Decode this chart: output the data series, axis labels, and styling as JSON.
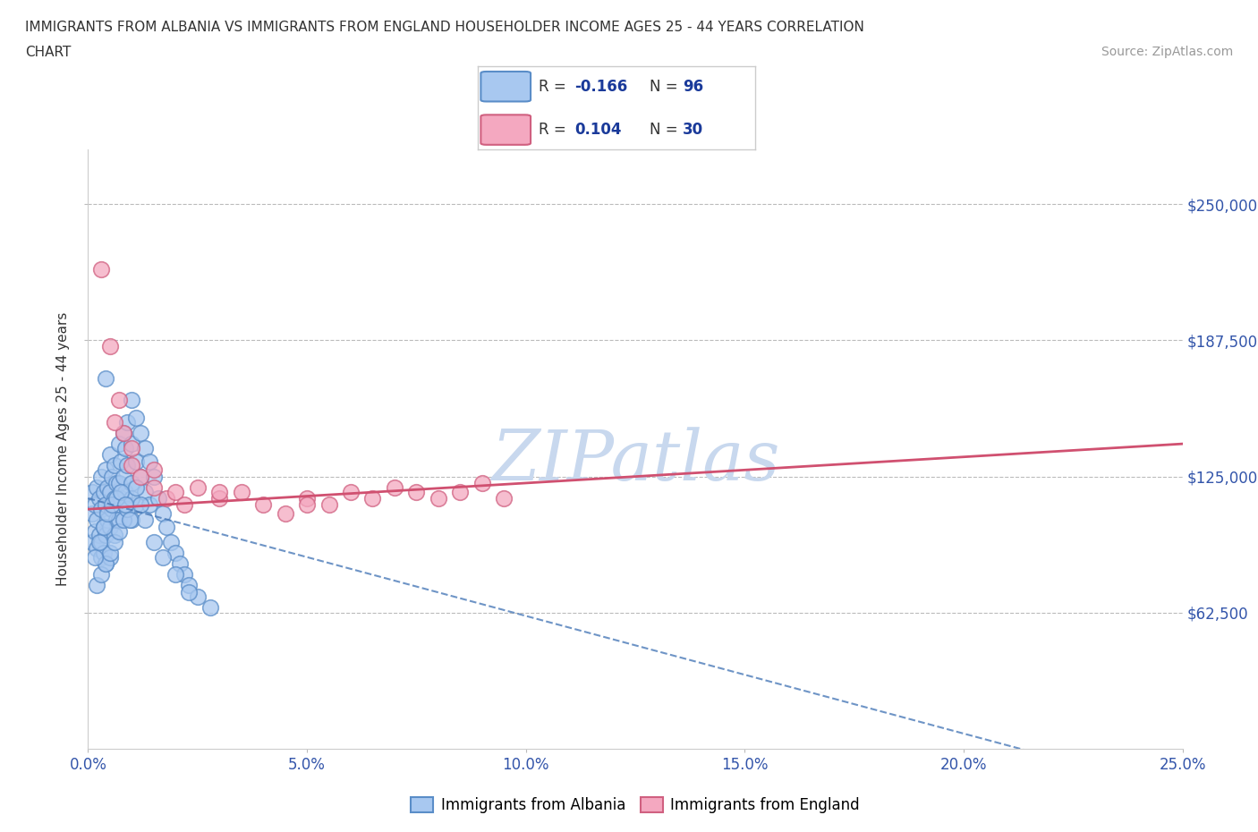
{
  "title_line1": "IMMIGRANTS FROM ALBANIA VS IMMIGRANTS FROM ENGLAND HOUSEHOLDER INCOME AGES 25 - 44 YEARS CORRELATION",
  "title_line2": "CHART",
  "source_text": "Source: ZipAtlas.com",
  "ylabel": "Householder Income Ages 25 - 44 years",
  "xlabel_ticks": [
    "0.0%",
    "5.0%",
    "10.0%",
    "15.0%",
    "20.0%",
    "25.0%"
  ],
  "xlabel_vals": [
    0.0,
    5.0,
    10.0,
    15.0,
    20.0,
    25.0
  ],
  "ytick_labels": [
    "$62,500",
    "$125,000",
    "$187,500",
    "$250,000"
  ],
  "ytick_vals": [
    62500,
    125000,
    187500,
    250000
  ],
  "xlim": [
    0.0,
    25.0
  ],
  "ylim": [
    0,
    275000
  ],
  "albania_R": -0.166,
  "albania_N": 96,
  "england_R": 0.104,
  "england_N": 30,
  "albania_color": "#a8c8f0",
  "albania_edge": "#5a8dc8",
  "england_color": "#f4a8c0",
  "england_edge": "#d06080",
  "albania_trend_color": "#4a7ab8",
  "england_trend_color": "#d05070",
  "watermark_color": "#c8d8ee",
  "legend_R_color": "#1a3a9a",
  "legend_N_color": "#1a3a9a",
  "albania_scatter_x": [
    0.1,
    0.1,
    0.1,
    0.15,
    0.15,
    0.2,
    0.2,
    0.2,
    0.25,
    0.25,
    0.3,
    0.3,
    0.3,
    0.3,
    0.35,
    0.35,
    0.35,
    0.4,
    0.4,
    0.4,
    0.4,
    0.45,
    0.45,
    0.5,
    0.5,
    0.5,
    0.5,
    0.55,
    0.55,
    0.6,
    0.6,
    0.6,
    0.65,
    0.65,
    0.7,
    0.7,
    0.7,
    0.75,
    0.75,
    0.8,
    0.8,
    0.85,
    0.85,
    0.9,
    0.9,
    0.9,
    1.0,
    1.0,
    1.0,
    1.0,
    1.1,
    1.1,
    1.1,
    1.2,
    1.2,
    1.3,
    1.3,
    1.4,
    1.4,
    1.5,
    1.6,
    1.7,
    1.8,
    1.9,
    2.0,
    2.1,
    2.2,
    2.3,
    2.5,
    2.8,
    0.2,
    0.3,
    0.4,
    0.5,
    0.6,
    0.7,
    0.8,
    0.9,
    1.0,
    1.1,
    1.2,
    1.3,
    1.5,
    1.7,
    2.0,
    2.3,
    0.15,
    0.25,
    0.35,
    0.45,
    0.55,
    0.65,
    0.75,
    0.85,
    0.95,
    0.4
  ],
  "albania_scatter_y": [
    108000,
    118000,
    95000,
    112000,
    100000,
    120000,
    105000,
    92000,
    115000,
    98000,
    125000,
    110000,
    95000,
    88000,
    118000,
    102000,
    90000,
    128000,
    112000,
    98000,
    85000,
    120000,
    105000,
    135000,
    118000,
    102000,
    88000,
    125000,
    110000,
    130000,
    115000,
    98000,
    122000,
    105000,
    140000,
    122000,
    105000,
    132000,
    115000,
    145000,
    125000,
    138000,
    118000,
    150000,
    130000,
    112000,
    160000,
    140000,
    122000,
    105000,
    152000,
    132000,
    112000,
    145000,
    125000,
    138000,
    118000,
    132000,
    112000,
    125000,
    115000,
    108000,
    102000,
    95000,
    90000,
    85000,
    80000,
    75000,
    70000,
    65000,
    75000,
    80000,
    85000,
    90000,
    95000,
    100000,
    105000,
    110000,
    115000,
    120000,
    112000,
    105000,
    95000,
    88000,
    80000,
    72000,
    88000,
    95000,
    102000,
    108000,
    112000,
    115000,
    118000,
    112000,
    105000,
    170000
  ],
  "england_scatter_x": [
    0.3,
    0.5,
    0.7,
    0.8,
    1.0,
    1.2,
    1.5,
    1.8,
    2.0,
    2.2,
    2.5,
    3.0,
    3.5,
    4.0,
    4.5,
    5.0,
    5.5,
    6.0,
    6.5,
    7.0,
    7.5,
    8.0,
    8.5,
    9.0,
    9.5,
    0.6,
    1.0,
    1.5,
    3.0,
    5.0
  ],
  "england_scatter_y": [
    220000,
    185000,
    160000,
    145000,
    130000,
    125000,
    120000,
    115000,
    118000,
    112000,
    120000,
    115000,
    118000,
    112000,
    108000,
    115000,
    112000,
    118000,
    115000,
    120000,
    118000,
    115000,
    118000,
    122000,
    115000,
    150000,
    138000,
    128000,
    118000,
    112000
  ]
}
